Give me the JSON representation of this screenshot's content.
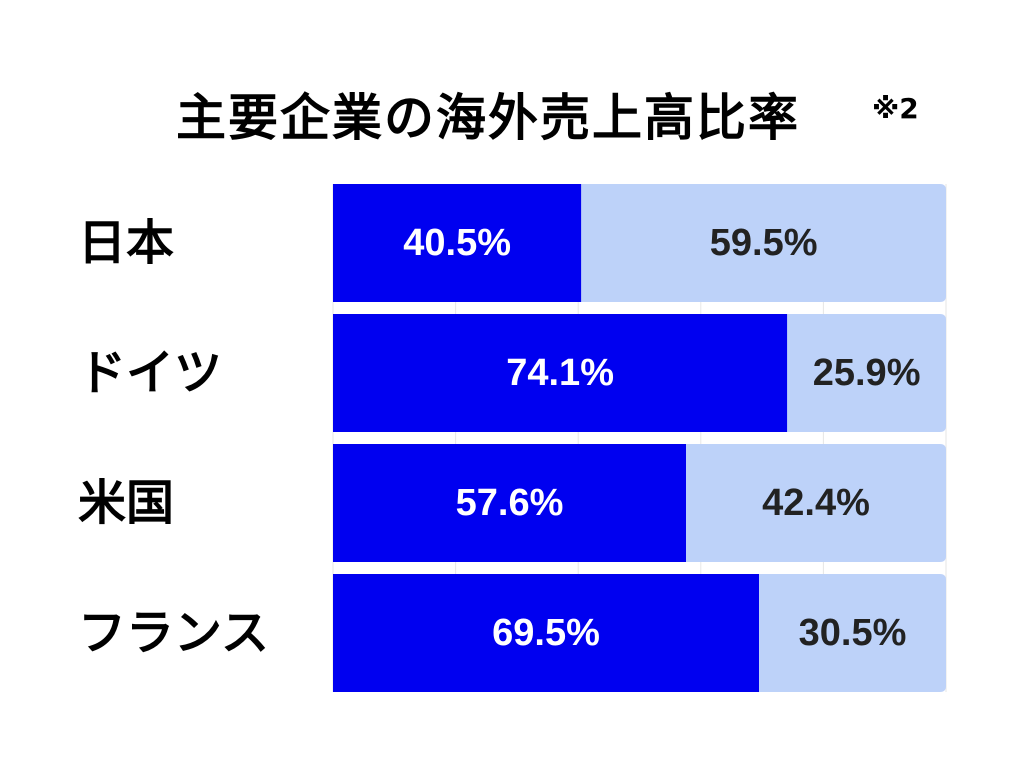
{
  "title": "主要企業の海外売上高比率",
  "note": "※2",
  "colors": {
    "primary": "#0000f0",
    "secondary": "#bdd2f9",
    "primary_text": "#ffffff",
    "secondary_text": "#222222",
    "grid": "#e6e6e6"
  },
  "chart_data": {
    "type": "bar",
    "orientation": "horizontal",
    "stacked": true,
    "title": "主要企業の海外売上高比率",
    "categories": [
      "日本",
      "ドイツ",
      "米国",
      "フランス"
    ],
    "series": [
      {
        "values": [
          40.5,
          74.1,
          57.6,
          69.5
        ],
        "labels": [
          "40.5%",
          "74.1%",
          "57.6%",
          "69.5%"
        ],
        "color": "#0000f0"
      },
      {
        "values": [
          59.5,
          25.9,
          42.4,
          30.5
        ],
        "labels": [
          "59.5%",
          "25.9%",
          "42.4%",
          "30.5%"
        ],
        "color": "#bdd2f9"
      }
    ],
    "xlim": [
      0,
      100
    ],
    "xlabel": "",
    "ylabel": "",
    "grid": true,
    "legend": "none"
  }
}
